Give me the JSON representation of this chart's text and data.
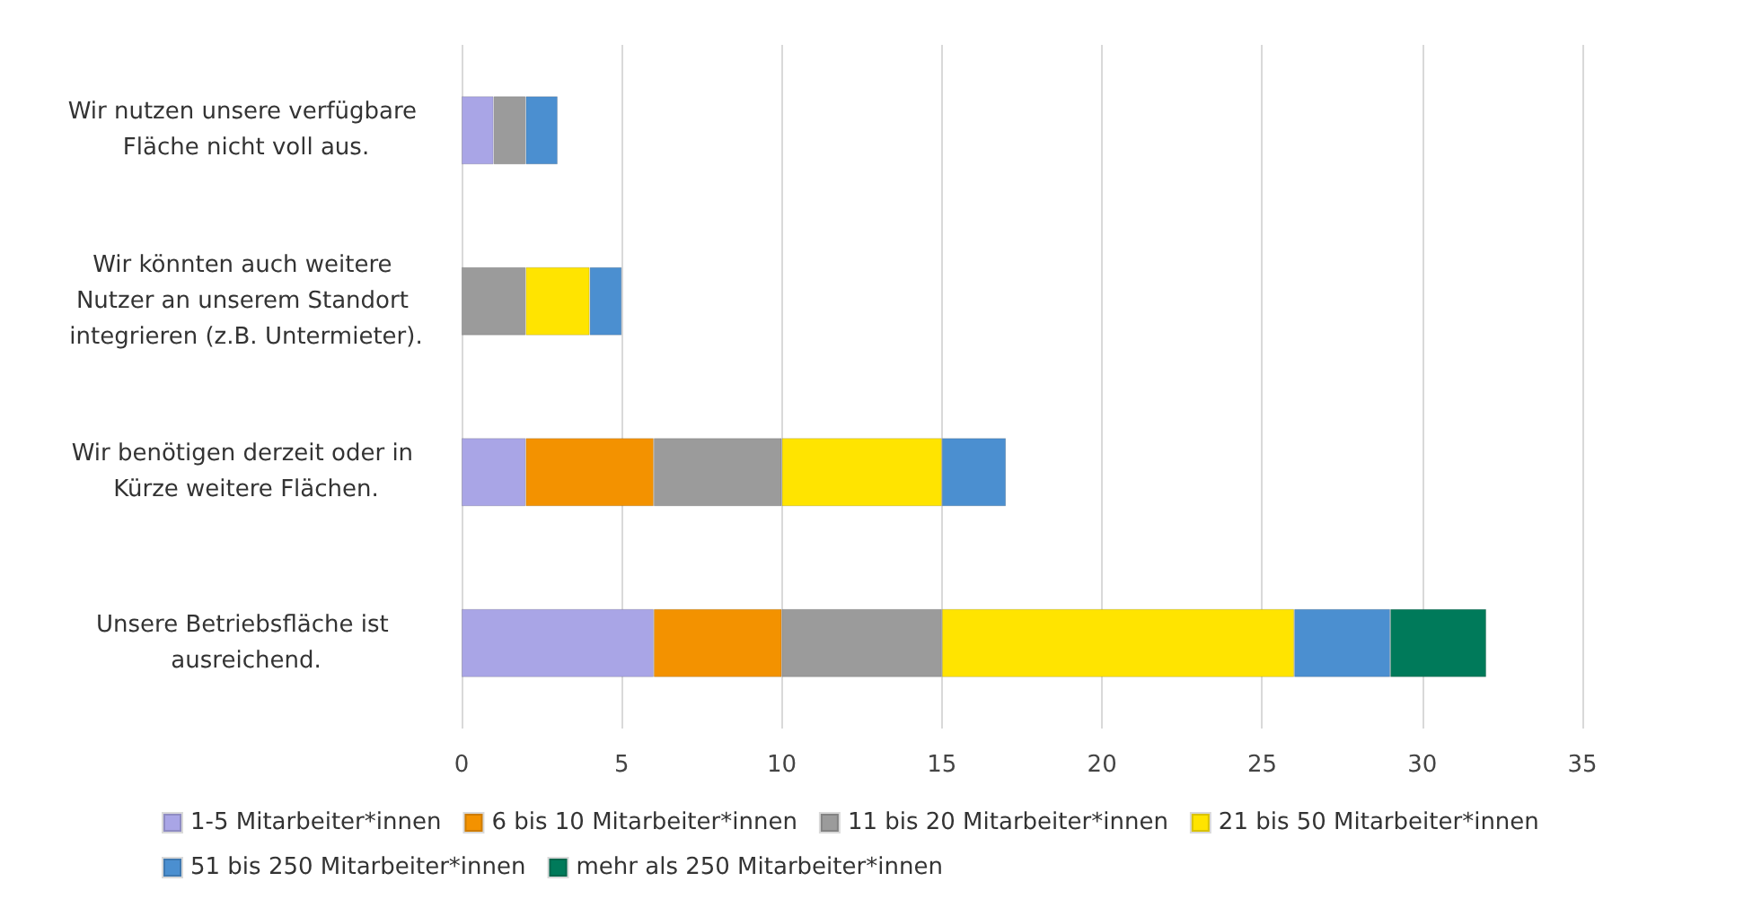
{
  "chart_data": {
    "type": "bar",
    "orientation": "horizontal",
    "stacked": true,
    "categories": [
      "Wir nutzen unsere verfügbare Fläche nicht voll aus.",
      "Wir könnten auch weitere Nutzer an unserem Standort integrieren (z.B. Untermieter).",
      "Wir benötigen derzeit oder in Kürze weitere Flächen.",
      "Unsere Betriebsfläche ist ausreichend."
    ],
    "series": [
      {
        "name": "1-5 Mitarbeiter*innen",
        "color": "#a9a5e6",
        "values": [
          1,
          null,
          2,
          6
        ]
      },
      {
        "name": "6 bis 10 Mitarbeiter*innen",
        "color": "#f39200",
        "values": [
          null,
          null,
          4,
          4
        ]
      },
      {
        "name": "11 bis 20 Mitarbeiter*innen",
        "color": "#9b9b9b",
        "values": [
          1,
          2,
          4,
          5
        ]
      },
      {
        "name": "21 bis 50 Mitarbeiter*innen",
        "color": "#ffe400",
        "values": [
          null,
          2,
          5,
          11
        ]
      },
      {
        "name": "51 bis 250 Mitarbeiter*innen",
        "color": "#4b8fd0",
        "values": [
          1,
          1,
          2,
          3
        ]
      },
      {
        "name": "mehr als 250 Mitarbeiter*innen",
        "color": "#007a5a",
        "values": [
          null,
          null,
          null,
          3
        ]
      }
    ],
    "xlim": [
      0,
      35
    ],
    "xticks": [
      0,
      5,
      10,
      15,
      20,
      25,
      30,
      35
    ],
    "grid": "x",
    "legend": "bottom"
  }
}
